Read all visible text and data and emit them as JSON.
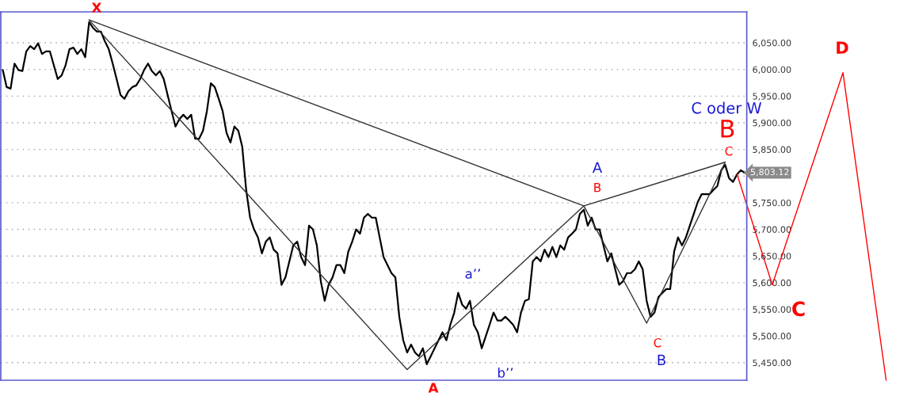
{
  "chart_data": {
    "type": "line",
    "categories": [
      null,
      null,
      null,
      null,
      null,
      null,
      null,
      null,
      null,
      null,
      null,
      null,
      null,
      null,
      null,
      null,
      null,
      null,
      null,
      null,
      null,
      null,
      null,
      null,
      null,
      null,
      null,
      null,
      null,
      null,
      null,
      null,
      null,
      null,
      null,
      null,
      null,
      null,
      null,
      null,
      null,
      null,
      null,
      null,
      null,
      null,
      null,
      null,
      null,
      null,
      null,
      null,
      null,
      null,
      null,
      null,
      null,
      null,
      null,
      null,
      null,
      null,
      null,
      null,
      null,
      null,
      null,
      null,
      null,
      null,
      null,
      null,
      null,
      null,
      null,
      null,
      null,
      null,
      null,
      null,
      null,
      null,
      null,
      null,
      null,
      null,
      null,
      null,
      null,
      null,
      null,
      null,
      null,
      null,
      null,
      null,
      null,
      null,
      null,
      null,
      null,
      null,
      null,
      null,
      null,
      null,
      null,
      null,
      null,
      null,
      null,
      null,
      null,
      null,
      null,
      null,
      null,
      null,
      null,
      null,
      null,
      null,
      null,
      null,
      null,
      null,
      null,
      null,
      null,
      null,
      null,
      null,
      null,
      null,
      null,
      null,
      null,
      null,
      null,
      null,
      null,
      null,
      null,
      null,
      null,
      null,
      null,
      null,
      null,
      null,
      null,
      null,
      null,
      null,
      null,
      null,
      null,
      null,
      null,
      null,
      null,
      null,
      null,
      null,
      null,
      null,
      null,
      null,
      null,
      null,
      null,
      null,
      null,
      null,
      null,
      null,
      null,
      null,
      null,
      null,
      null,
      null,
      null,
      null,
      null,
      null,
      null,
      null,
      null,
      null,
      null,
      null,
      null,
      null,
      null,
      null,
      null,
      null,
      null,
      null,
      null,
      null,
      null,
      null,
      null,
      null,
      null,
      null,
      null,
      null,
      null,
      null,
      null,
      null,
      null,
      null,
      null,
      null,
      null,
      null,
      null,
      null,
      null,
      null,
      null,
      null
    ],
    "ylim": [
      5417,
      6108
    ],
    "yticks": [
      {
        "value": 5450,
        "label": "5,450.00"
      },
      {
        "value": 5500,
        "label": "5,500.00"
      },
      {
        "value": 5550,
        "label": "5,550.00"
      },
      {
        "value": 5600,
        "label": "5,600.00"
      },
      {
        "value": 5650,
        "label": "5,650.00"
      },
      {
        "value": 5700,
        "label": "5,700.00"
      },
      {
        "value": 5750,
        "label": "5,750.00"
      },
      {
        "value": 5800,
        "label": null
      },
      {
        "value": 5850,
        "label": "5,850.00"
      },
      {
        "value": 5900,
        "label": "5,900.00"
      },
      {
        "value": 5950,
        "label": "5,950.00"
      },
      {
        "value": 6000,
        "label": "6,000.00"
      },
      {
        "value": 6050,
        "label": "6,050.00"
      }
    ],
    "tick_labels": "y",
    "grid": "y",
    "marker": "none",
    "line_style": "solid",
    "series": [
      {
        "color": "#000000",
        "values": [
          5999,
          5967,
          5964,
          6011,
          5999,
          5997,
          6034,
          6044,
          6038,
          6049,
          6029,
          6034,
          6034,
          6008,
          5982,
          5989,
          6008,
          6038,
          6041,
          6029,
          6038,
          6023,
          6089,
          6078,
          6071,
          6071,
          6053,
          6038,
          6011,
          5982,
          5952,
          5945,
          5959,
          5967,
          5970,
          5982,
          5999,
          6011,
          5997,
          5989,
          5997,
          5982,
          5952,
          5922,
          5893,
          5907,
          5915,
          5907,
          5915,
          5870,
          5870,
          5885,
          5922,
          5974,
          5967,
          5945,
          5922,
          5881,
          5863,
          5893,
          5885,
          5855,
          5774,
          5722,
          5700,
          5685,
          5655,
          5677,
          5685,
          5662,
          5655,
          5596,
          5610,
          5640,
          5670,
          5677,
          5648,
          5633,
          5707,
          5700,
          5670,
          5603,
          5566,
          5596,
          5610,
          5633,
          5633,
          5618,
          5658,
          5677,
          5700,
          5692,
          5722,
          5729,
          5722,
          5722,
          5685,
          5648,
          5633,
          5618,
          5610,
          5536,
          5492,
          5469,
          5484,
          5469,
          5462,
          5477,
          5447,
          5462,
          5477,
          5492,
          5507,
          5492,
          5521,
          5544,
          5581,
          5559,
          5551,
          5566,
          5521,
          5507,
          5477,
          5499,
          5521,
          5544,
          5529,
          5529,
          5536,
          5529,
          5521,
          5507,
          5544,
          5566,
          5569,
          5640,
          5648,
          5640,
          5662,
          5648,
          5667,
          5648,
          5670,
          5662,
          5685,
          5692,
          5700,
          5729,
          5737,
          5707,
          5722,
          5700,
          5700,
          5670,
          5640,
          5655,
          5625,
          5596,
          5603,
          5618,
          5618,
          5625,
          5640,
          5625,
          5566,
          5536,
          5544,
          5573,
          5581,
          5588,
          5588,
          5658,
          5685,
          5670,
          5685,
          5707,
          5729,
          5751,
          5766,
          5766,
          5766,
          5774,
          5781,
          5811,
          5821,
          5796,
          5789,
          5803,
          5811,
          5806,
          null,
          null,
          null,
          null,
          null,
          null,
          null,
          null,
          null,
          null,
          null,
          null,
          null,
          null,
          null,
          null,
          null,
          null,
          null,
          null,
          null,
          null,
          null,
          null,
          null,
          null,
          null,
          null,
          null,
          null,
          null,
          null,
          null,
          null,
          null,
          null
        ]
      },
      {
        "color": "#333333",
        "values": [
          null,
          null,
          null,
          null,
          null,
          null,
          null,
          null,
          null,
          null,
          null,
          null,
          null,
          null,
          null,
          null,
          null,
          null,
          null,
          null,
          null,
          null,
          6093,
          null,
          null,
          null,
          null,
          null,
          null,
          null,
          null,
          null,
          null,
          null,
          null,
          null,
          null,
          null,
          null,
          null,
          null,
          null,
          null,
          null,
          null,
          null,
          null,
          null,
          null,
          null,
          null,
          null,
          null,
          null,
          null,
          null,
          null,
          null,
          null,
          null,
          null,
          null,
          null,
          null,
          null,
          null,
          null,
          null,
          null,
          null,
          null,
          null,
          null,
          null,
          null,
          null,
          null,
          null,
          null,
          null,
          null,
          null,
          null,
          null,
          null,
          null,
          null,
          null,
          null,
          null,
          null,
          null,
          null,
          null,
          null,
          null,
          null,
          null,
          null,
          null,
          null,
          null,
          null,
          null,
          null,
          null,
          null,
          null,
          null,
          null,
          null,
          null,
          null,
          null,
          null,
          null,
          null,
          null,
          null,
          null,
          null,
          null,
          null,
          null,
          null,
          null,
          null,
          null,
          null,
          null,
          null,
          null,
          null,
          null,
          null,
          null,
          null,
          null,
          null,
          null,
          null,
          null,
          null,
          null,
          null,
          null,
          null,
          null,
          5744,
          null,
          null,
          null,
          null,
          null,
          null,
          null,
          null,
          null,
          null,
          null,
          null,
          null,
          null,
          null,
          null,
          null,
          null,
          null,
          null,
          null,
          null,
          null,
          null,
          null,
          null,
          null,
          null,
          null,
          null,
          null,
          null,
          null,
          null,
          null,
          5826,
          null,
          null,
          null,
          null,
          null,
          null,
          null,
          null,
          null,
          null,
          null,
          null,
          null,
          null,
          null,
          null,
          null,
          null,
          null,
          null,
          null,
          null,
          null,
          null,
          null,
          null,
          null,
          null,
          null,
          null,
          null,
          null,
          null,
          null,
          null,
          null,
          null,
          null,
          null,
          null,
          null
        ]
      },
      {
        "color": "#333333",
        "values": [
          null,
          null,
          null,
          null,
          null,
          null,
          null,
          null,
          null,
          null,
          null,
          null,
          null,
          null,
          null,
          null,
          null,
          null,
          null,
          null,
          null,
          null,
          6093,
          null,
          null,
          null,
          null,
          null,
          null,
          null,
          null,
          null,
          null,
          null,
          null,
          null,
          null,
          null,
          null,
          null,
          null,
          null,
          null,
          null,
          null,
          null,
          null,
          null,
          null,
          null,
          null,
          null,
          null,
          null,
          null,
          null,
          null,
          null,
          null,
          null,
          null,
          null,
          null,
          null,
          null,
          null,
          null,
          null,
          null,
          null,
          null,
          null,
          null,
          null,
          null,
          null,
          null,
          null,
          null,
          null,
          null,
          null,
          null,
          null,
          null,
          null,
          null,
          null,
          null,
          null,
          null,
          null,
          null,
          null,
          null,
          null,
          null,
          null,
          null,
          null,
          null,
          null,
          null,
          5437,
          null,
          null,
          null,
          null,
          null,
          null,
          null,
          null,
          null,
          null,
          null,
          null,
          null,
          null,
          null,
          null,
          null,
          null,
          null,
          null,
          null,
          null,
          null,
          null,
          null,
          null,
          null,
          null,
          null,
          null,
          null,
          null,
          null,
          null,
          null,
          null,
          null,
          null,
          null,
          null,
          null,
          null,
          null,
          null,
          5744,
          null,
          null,
          null,
          null,
          null,
          null,
          null,
          null,
          null,
          null,
          null,
          null,
          null,
          null,
          null,
          5524,
          null,
          null,
          null,
          null,
          null,
          null,
          null,
          null,
          null,
          null,
          null,
          null,
          null,
          null,
          null,
          null,
          null,
          null,
          null,
          5826,
          null,
          null,
          null,
          null,
          null,
          null,
          null,
          null,
          null,
          null,
          null,
          null,
          null,
          null,
          null,
          null,
          null,
          null,
          null,
          null,
          null,
          null,
          null,
          null,
          null,
          null,
          null,
          null,
          null,
          null,
          null,
          null,
          null,
          null,
          null,
          null,
          null,
          null,
          null,
          null,
          null
        ]
      },
      {
        "color": "#ff0000",
        "values": [
          null,
          null,
          null,
          null,
          null,
          null,
          null,
          null,
          null,
          null,
          null,
          null,
          null,
          null,
          null,
          null,
          null,
          null,
          null,
          null,
          null,
          null,
          null,
          null,
          null,
          null,
          null,
          null,
          null,
          null,
          null,
          null,
          null,
          null,
          null,
          null,
          null,
          null,
          null,
          null,
          null,
          null,
          null,
          null,
          null,
          null,
          null,
          null,
          null,
          null,
          null,
          null,
          null,
          null,
          null,
          null,
          null,
          null,
          null,
          null,
          null,
          null,
          null,
          null,
          null,
          null,
          null,
          null,
          null,
          null,
          null,
          null,
          null,
          null,
          null,
          null,
          null,
          null,
          null,
          null,
          null,
          null,
          null,
          null,
          null,
          null,
          null,
          null,
          null,
          null,
          null,
          null,
          null,
          null,
          null,
          null,
          null,
          null,
          null,
          null,
          null,
          null,
          null,
          null,
          null,
          null,
          null,
          null,
          null,
          null,
          null,
          null,
          null,
          null,
          null,
          null,
          null,
          null,
          null,
          null,
          null,
          null,
          null,
          null,
          null,
          null,
          null,
          null,
          null,
          null,
          null,
          null,
          null,
          null,
          null,
          null,
          null,
          null,
          null,
          null,
          null,
          null,
          null,
          null,
          null,
          null,
          null,
          null,
          null,
          null,
          null,
          null,
          null,
          null,
          null,
          null,
          null,
          null,
          null,
          null,
          null,
          null,
          null,
          null,
          null,
          null,
          null,
          null,
          null,
          null,
          null,
          null,
          null,
          null,
          null,
          null,
          null,
          null,
          null,
          null,
          null,
          null,
          null,
          null,
          null,
          null,
          null,
          5804,
          null,
          null,
          null,
          null,
          null,
          null,
          null,
          null,
          5596,
          null,
          null,
          null,
          null,
          null,
          null,
          null,
          null,
          null,
          null,
          null,
          null,
          null,
          null,
          null,
          null,
          null,
          5994,
          null,
          null,
          null,
          null,
          null,
          null,
          null,
          null,
          null,
          null,
          5417
        ]
      }
    ],
    "annotations": [
      "X",
      "A",
      "a’’",
      "b’’",
      "A",
      "B",
      "C",
      "B",
      "C oder W",
      "B",
      "C",
      "C",
      "D",
      "5,803.12"
    ]
  }
}
